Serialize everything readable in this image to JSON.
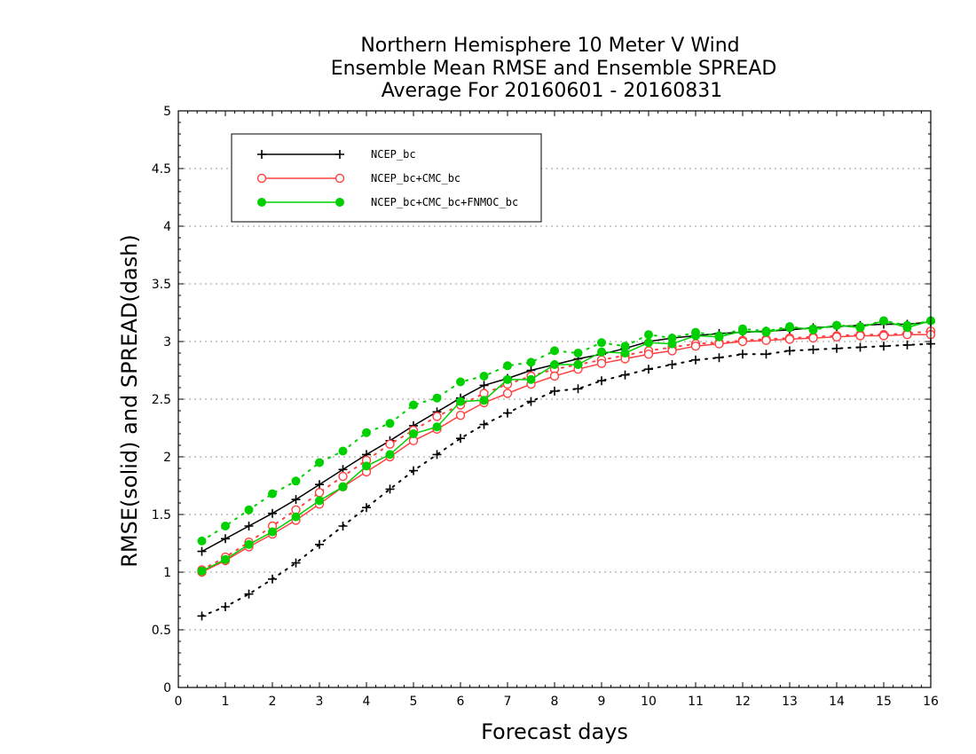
{
  "chart_data": {
    "type": "line",
    "title": [
      "Northern Hemisphere 10 Meter V Wind",
      "Ensemble Mean RMSE and Ensemble SPREAD",
      "Average For 20160601 - 20160831"
    ],
    "xlabel": "Forecast days",
    "ylabel": "RMSE(solid) and SPREAD(dash)",
    "xlim": [
      0,
      16
    ],
    "ylim": [
      0,
      5
    ],
    "xticks": [
      0,
      1,
      2,
      3,
      4,
      5,
      6,
      7,
      8,
      9,
      10,
      11,
      12,
      13,
      14,
      15,
      16
    ],
    "yticks": [
      0,
      0.5,
      1,
      1.5,
      2,
      2.5,
      3,
      3.5,
      4,
      4.5,
      5
    ],
    "ytick_labels": [
      "0",
      "0.5",
      "1",
      "1.5",
      "2",
      "2.5",
      "3",
      "3.5",
      "4",
      "4.5",
      "5"
    ],
    "grid": "horizontal dotted",
    "legend_position": "top-left",
    "x": [
      0.5,
      1,
      1.5,
      2,
      2.5,
      3,
      3.5,
      4,
      4.5,
      5,
      5.5,
      6,
      6.5,
      7,
      7.5,
      8,
      8.5,
      9,
      9.5,
      10,
      10.5,
      11,
      11.5,
      12,
      12.5,
      13,
      13.5,
      14,
      14.5,
      15,
      15.5,
      16
    ],
    "series": [
      {
        "name": "NCEP_bc",
        "color": "#000000",
        "marker": "plus",
        "rmse": [
          1.18,
          1.29,
          1.4,
          1.51,
          1.63,
          1.76,
          1.89,
          2.02,
          2.14,
          2.27,
          2.39,
          2.51,
          2.62,
          2.68,
          2.75,
          2.8,
          2.85,
          2.89,
          2.94,
          3.0,
          3.03,
          3.05,
          3.07,
          3.08,
          3.09,
          3.1,
          3.12,
          3.13,
          3.14,
          3.15,
          3.15,
          3.17
        ],
        "spread": [
          0.62,
          0.7,
          0.81,
          0.94,
          1.08,
          1.24,
          1.4,
          1.56,
          1.72,
          1.88,
          2.02,
          2.16,
          2.28,
          2.38,
          2.48,
          2.57,
          2.59,
          2.66,
          2.71,
          2.76,
          2.8,
          2.84,
          2.86,
          2.89,
          2.89,
          2.92,
          2.93,
          2.94,
          2.95,
          2.96,
          2.97,
          2.98
        ]
      },
      {
        "name": "NCEP_bc+CMC_bc",
        "color": "#ff4040",
        "marker": "open-circle",
        "rmse": [
          1.0,
          1.1,
          1.22,
          1.33,
          1.45,
          1.59,
          1.74,
          1.87,
          2.0,
          2.14,
          2.24,
          2.36,
          2.47,
          2.55,
          2.63,
          2.7,
          2.76,
          2.81,
          2.85,
          2.89,
          2.92,
          2.96,
          2.98,
          3.0,
          3.01,
          3.02,
          3.03,
          3.04,
          3.05,
          3.05,
          3.06,
          3.06
        ],
        "spread": [
          1.02,
          1.13,
          1.26,
          1.4,
          1.54,
          1.69,
          1.83,
          1.97,
          2.11,
          2.23,
          2.35,
          2.45,
          2.55,
          2.63,
          2.7,
          2.76,
          2.8,
          2.84,
          2.88,
          2.92,
          2.95,
          2.98,
          2.99,
          3.01,
          3.02,
          3.03,
          3.04,
          3.05,
          3.06,
          3.06,
          3.07,
          3.09
        ]
      },
      {
        "name": "NCEP_bc+CMC_bc+FNMOC_bc",
        "color": "#00d000",
        "marker": "filled-circle",
        "rmse": [
          1.01,
          1.11,
          1.24,
          1.35,
          1.48,
          1.62,
          1.74,
          1.92,
          2.02,
          2.2,
          2.26,
          2.48,
          2.49,
          2.67,
          2.67,
          2.8,
          2.8,
          2.91,
          2.9,
          2.99,
          2.98,
          3.05,
          3.04,
          3.09,
          3.08,
          3.12,
          3.11,
          3.14,
          3.12,
          3.18,
          3.12,
          3.18
        ],
        "spread": [
          1.27,
          1.4,
          1.54,
          1.68,
          1.79,
          1.95,
          2.05,
          2.21,
          2.29,
          2.45,
          2.51,
          2.65,
          2.7,
          2.79,
          2.82,
          2.92,
          2.9,
          2.99,
          2.96,
          3.06,
          3.03,
          3.08,
          3.05,
          3.11,
          3.09,
          3.13,
          3.1,
          3.14,
          3.13,
          3.18,
          3.14,
          3.18
        ]
      }
    ]
  }
}
